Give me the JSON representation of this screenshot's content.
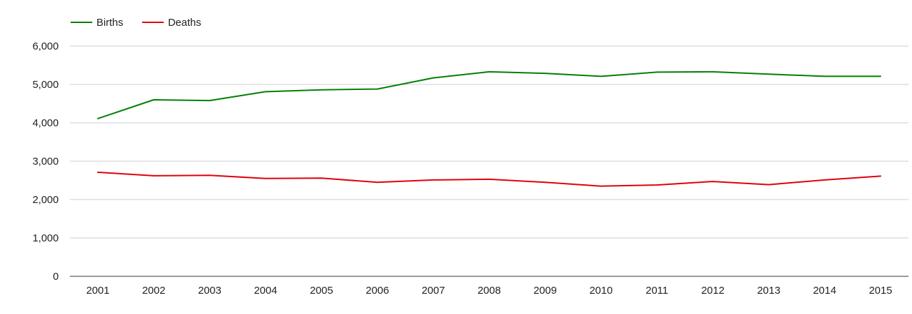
{
  "chart_data": {
    "type": "line",
    "x": [
      "2001",
      "2002",
      "2003",
      "2004",
      "2005",
      "2006",
      "2007",
      "2008",
      "2009",
      "2010",
      "2011",
      "2012",
      "2013",
      "2014",
      "2015"
    ],
    "series": [
      {
        "name": "Births",
        "color": "#008000",
        "values": [
          4110,
          4600,
          4580,
          4810,
          4860,
          4880,
          5170,
          5330,
          5290,
          5210,
          5320,
          5330,
          5270,
          5210,
          5210
        ]
      },
      {
        "name": "Deaths",
        "color": "#e0000b",
        "values": [
          2710,
          2620,
          2630,
          2550,
          2560,
          2450,
          2510,
          2530,
          2450,
          2350,
          2380,
          2470,
          2390,
          2510,
          2610
        ]
      }
    ],
    "yticks": [
      "0",
      "1,000",
      "2,000",
      "3,000",
      "4,000",
      "5,000",
      "6,000"
    ],
    "ylim": [
      0,
      6000
    ],
    "grid": true,
    "legend": "top-left",
    "title": "",
    "xlabel": "",
    "ylabel": ""
  }
}
